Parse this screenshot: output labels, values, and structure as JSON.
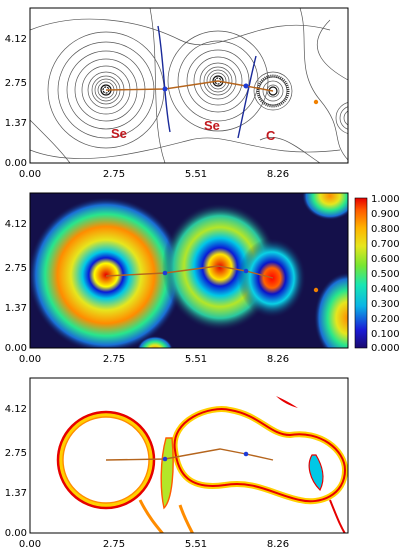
{
  "colors": {
    "frame": "#000000",
    "contour": "#555555",
    "bond_path": "#b5651d",
    "zero_flux": "#1a2a9a",
    "bcp": "#1f3bd6",
    "rcp": "#f08000",
    "atom_label": "#c0181e"
  },
  "panels": [
    {
      "name": "laplacian-contour-map",
      "x_ticks": [
        "0.00",
        "2.75",
        "5.51",
        "8.26"
      ],
      "y_ticks": [
        "0.00",
        "1.37",
        "2.75",
        "4.12"
      ],
      "atom_labels": [
        "Se",
        "Se",
        "C"
      ]
    },
    {
      "name": "elf-color-map",
      "x_ticks": [
        "0.00",
        "2.75",
        "5.51",
        "8.26"
      ],
      "y_ticks": [
        "0.00",
        "1.37",
        "2.75",
        "4.12"
      ],
      "colorbar_ticks": [
        "1.000",
        "0.900",
        "0.800",
        "0.700",
        "0.600",
        "0.500",
        "0.400",
        "0.300",
        "0.200",
        "0.100",
        "0.000"
      ]
    },
    {
      "name": "isosurface-map",
      "x_ticks": [
        "0.00",
        "2.75",
        "5.51",
        "8.26"
      ],
      "y_ticks": [
        "0.00",
        "1.37",
        "2.75",
        "4.12"
      ]
    }
  ]
}
